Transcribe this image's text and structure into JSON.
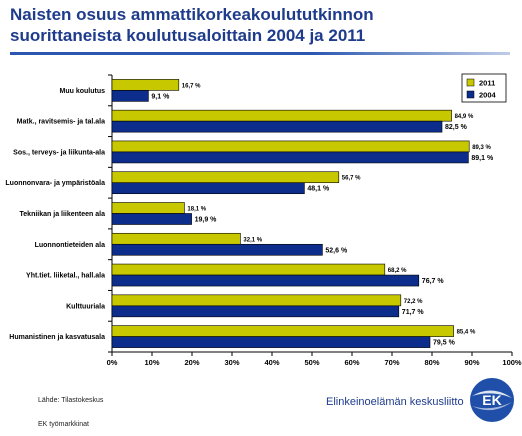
{
  "header": {
    "title_line1": "Naisten osuus ammattikorkeakoulututkinnon",
    "title_line2": "suorittaneista koulutusaloittain  2004 ja 2011"
  },
  "chart_data": {
    "type": "bar",
    "orientation": "horizontal",
    "categories": [
      "Muu koulutus",
      "Matk., ravitsemis- ja tal.ala",
      "Sos., terveys- ja liikunta-ala",
      "Luonnonvara- ja ympäristöala",
      "Tekniikan ja liikenteen ala",
      "Luonnontieteiden ala",
      "Yht.tiet. liiketal., hall.ala",
      "Kulttuuriala",
      "Humanistinen ja kasvatusala"
    ],
    "series": [
      {
        "name": "2011",
        "color": "#c8c800",
        "values": [
          16.7,
          84.9,
          89.3,
          56.7,
          18.1,
          32.1,
          68.2,
          72.2,
          85.4
        ],
        "labels": [
          "16,7 %",
          "84,9 %",
          "89,3 %",
          "56,7 %",
          "18,1 %",
          "32,1 %",
          "68,2 %",
          "72,2 %",
          "85,4 %"
        ]
      },
      {
        "name": "2004",
        "color": "#0d2d8c",
        "values": [
          9.1,
          82.5,
          89.1,
          48.1,
          19.9,
          52.6,
          76.7,
          71.7,
          79.5
        ],
        "labels": [
          "9,1 %",
          "82,5 %",
          "89,1 %",
          "48,1 %",
          "19,9 %",
          "52,6 %",
          "76,7 %",
          "71,7 %",
          "79,5 %"
        ]
      }
    ],
    "xlim": [
      0,
      100
    ],
    "xticks": [
      "0%",
      "10%",
      "20%",
      "30%",
      "40%",
      "50%",
      "60%",
      "70%",
      "80%",
      "90%",
      "100%"
    ],
    "legend_position": "top-right",
    "grid": false
  },
  "footer": {
    "source": "Lähde: Tilastokeskus",
    "note": "EK työmarkkinat",
    "brand": "Elinkeinoelämän keskusliitto",
    "logo_text": "EK"
  }
}
